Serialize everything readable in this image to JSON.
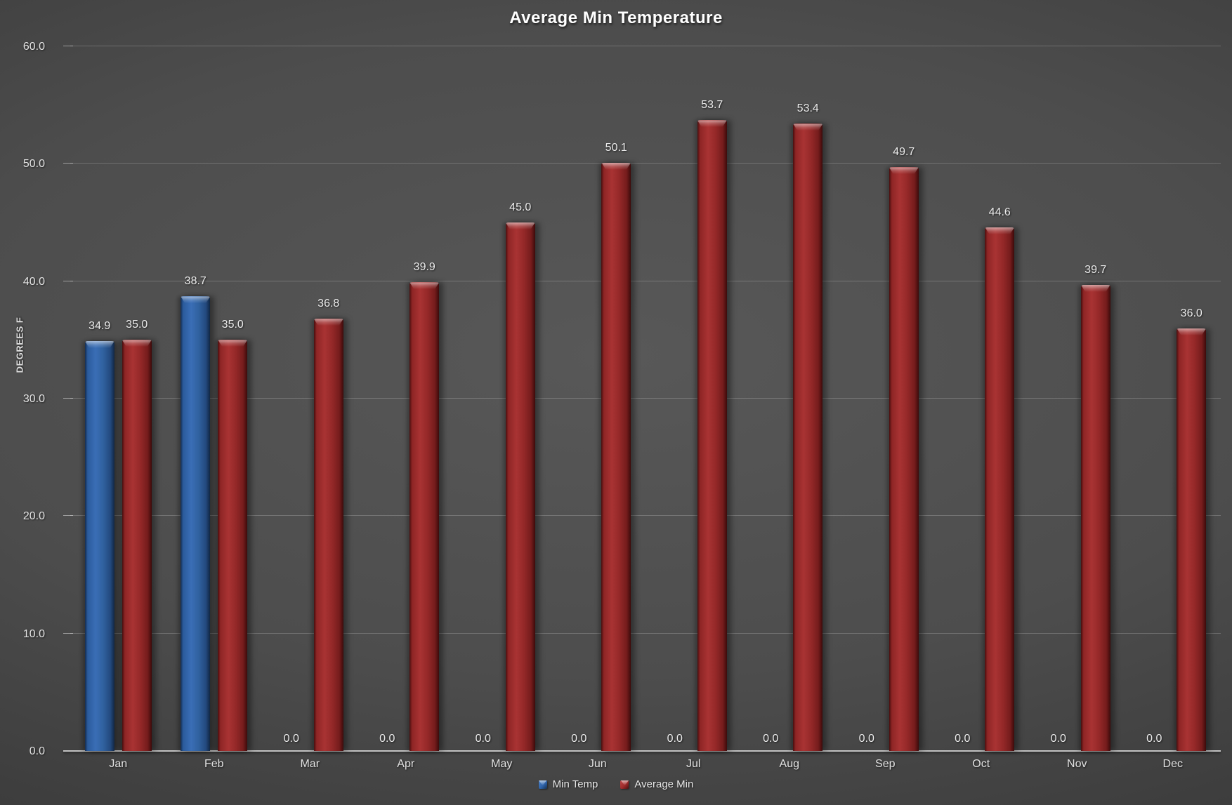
{
  "chart_data": {
    "type": "bar",
    "title": "Average Min Temperature",
    "xlabel": "",
    "ylabel": "DEGREES F",
    "categories": [
      "Jan",
      "Feb",
      "Mar",
      "Apr",
      "May",
      "Jun",
      "Jul",
      "Aug",
      "Sep",
      "Oct",
      "Nov",
      "Dec"
    ],
    "series": [
      {
        "name": "Min Temp",
        "color": "#2e62a8",
        "values": [
          34.9,
          38.7,
          0.0,
          0.0,
          0.0,
          0.0,
          0.0,
          0.0,
          0.0,
          0.0,
          0.0,
          0.0
        ]
      },
      {
        "name": "Average Min",
        "color": "#9e2b2b",
        "values": [
          35.0,
          35.0,
          36.8,
          39.9,
          45.0,
          50.1,
          53.7,
          53.4,
          49.7,
          44.6,
          39.7,
          36.0
        ]
      }
    ],
    "ylim": [
      0,
      60
    ],
    "y_ticks": [
      0,
      10,
      20,
      30,
      40,
      50,
      60
    ],
    "y_tick_labels": [
      "0.0",
      "10.0",
      "20.0",
      "30.0",
      "40.0",
      "50.0",
      "60.0"
    ],
    "grid": true,
    "legend_position": "bottom",
    "data_labels": "one-decimal",
    "background": "dark-gray-gradient"
  }
}
